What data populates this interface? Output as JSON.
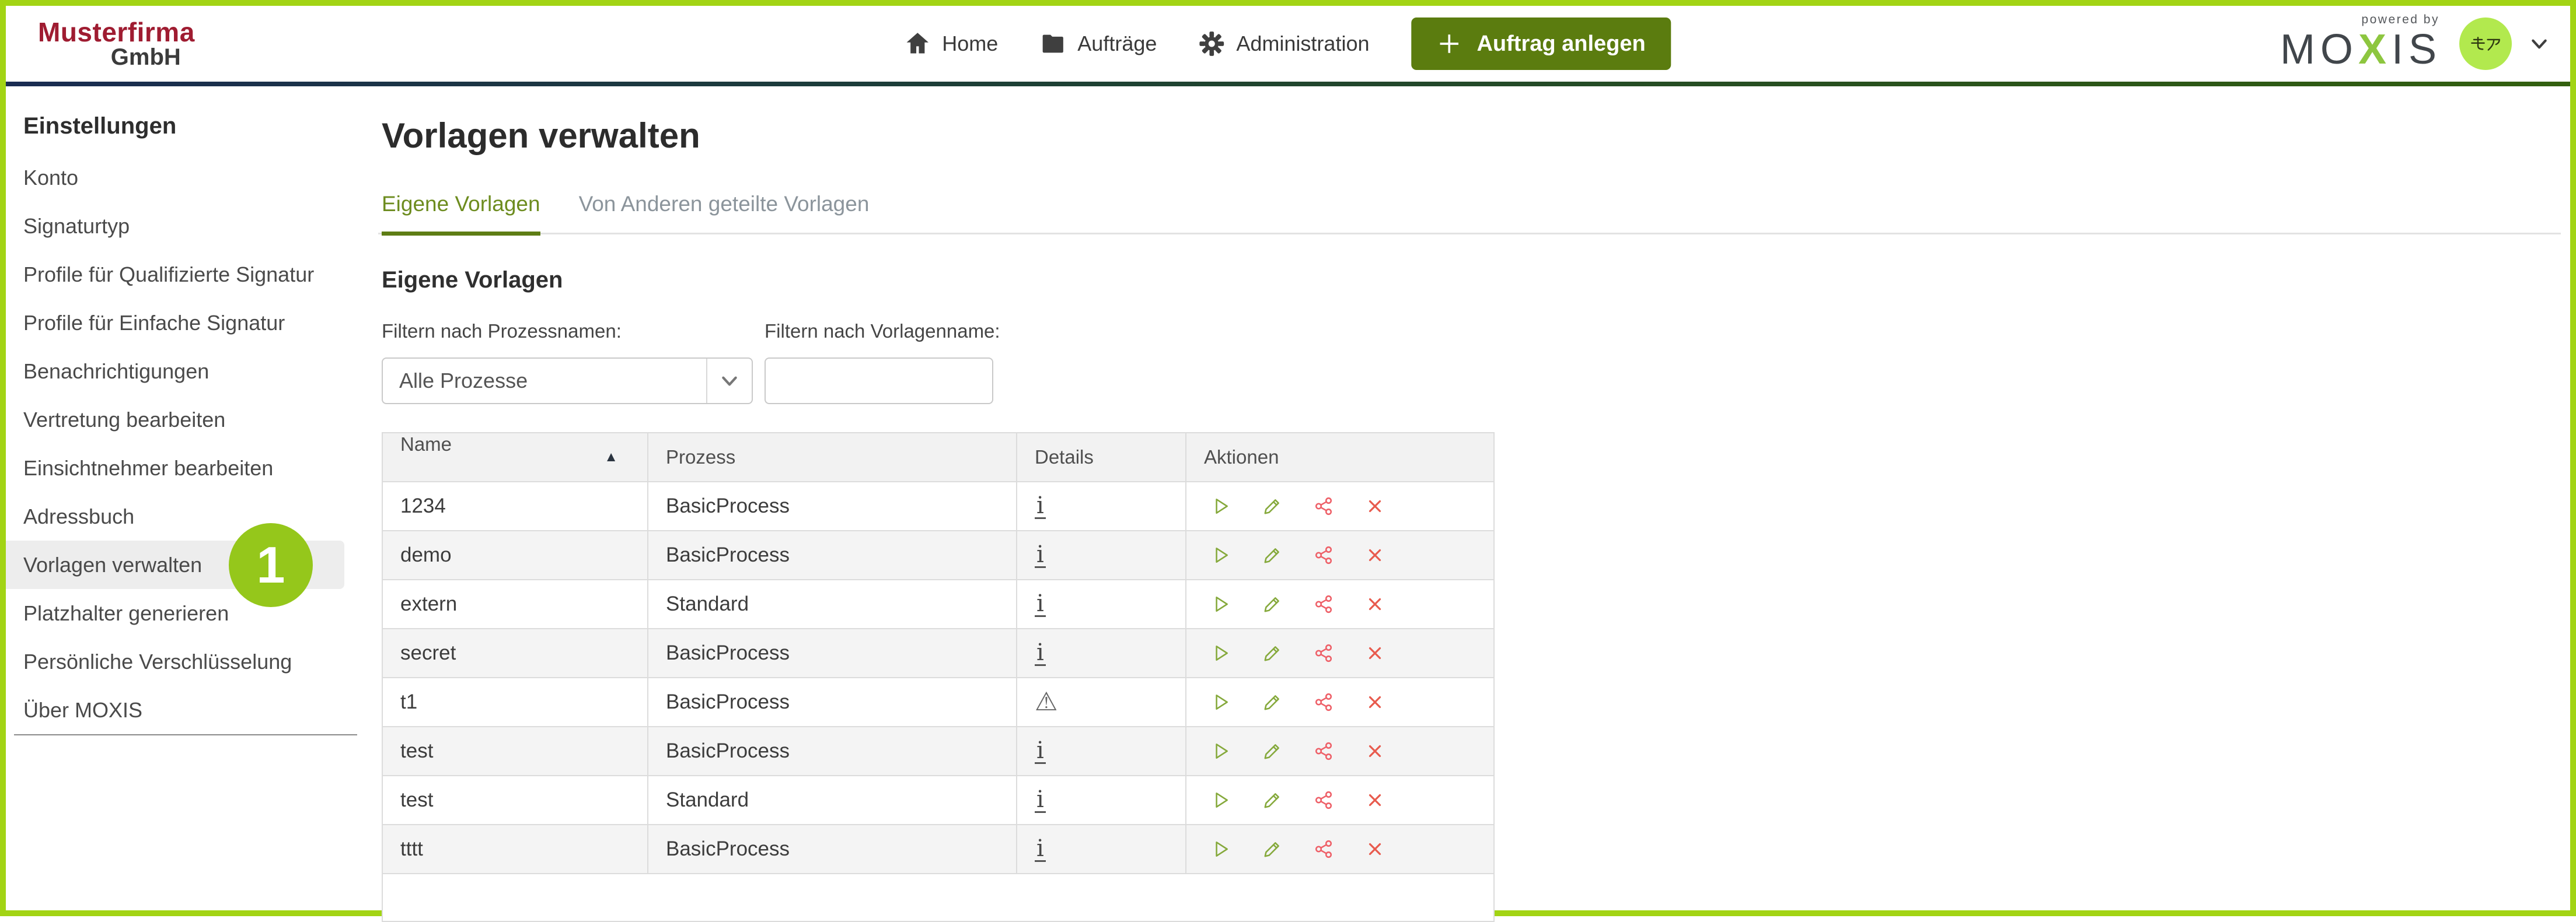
{
  "header": {
    "company_line1": "Musterfirma",
    "company_line2": "GmbH",
    "nav": [
      {
        "label": "Home"
      },
      {
        "label": "Aufträge"
      },
      {
        "label": "Administration"
      }
    ],
    "create_button_label": "Auftrag anlegen",
    "powered_by": "powered by",
    "brand_mo": "MO",
    "brand_x": "X",
    "brand_is": "IS",
    "avatar_text": "モア"
  },
  "sidebar": {
    "heading": "Einstellungen",
    "badge": "1",
    "items": [
      {
        "label": "Konto",
        "active": false
      },
      {
        "label": "Signaturtyp",
        "active": false
      },
      {
        "label": "Profile für Qualifizierte Signatur",
        "active": false
      },
      {
        "label": "Profile für Einfache Signatur",
        "active": false
      },
      {
        "label": "Benachrichtigungen",
        "active": false
      },
      {
        "label": "Vertretung bearbeiten",
        "active": false
      },
      {
        "label": "Einsichtnehmer bearbeiten",
        "active": false
      },
      {
        "label": "Adressbuch",
        "active": false
      },
      {
        "label": "Vorlagen verwalten",
        "active": true
      },
      {
        "label": "Platzhalter generieren",
        "active": false
      },
      {
        "label": "Persönliche Verschlüsselung",
        "active": false
      },
      {
        "label": "Über MOXIS",
        "active": false
      }
    ]
  },
  "main": {
    "title": "Vorlagen verwalten",
    "tabs": [
      {
        "label": "Eigene Vorlagen",
        "active": true
      },
      {
        "label": "Von Anderen geteilte Vorlagen",
        "active": false
      }
    ],
    "section_heading": "Eigene Vorlagen",
    "filters": {
      "process_label": "Filtern nach Prozessnamen:",
      "process_value": "Alle Prozesse",
      "name_label": "Filtern nach Vorlagenname:",
      "name_value": ""
    },
    "table": {
      "columns": [
        "Name",
        "Prozess",
        "Details",
        "Aktionen"
      ],
      "sort_column": "Name",
      "sort_direction": "asc",
      "rows": [
        {
          "name": "1234",
          "process": "BasicProcess",
          "details": "info"
        },
        {
          "name": "demo",
          "process": "BasicProcess",
          "details": "info"
        },
        {
          "name": "extern",
          "process": "Standard",
          "details": "info"
        },
        {
          "name": "secret",
          "process": "BasicProcess",
          "details": "info"
        },
        {
          "name": "t1",
          "process": "BasicProcess",
          "details": "warning"
        },
        {
          "name": "test",
          "process": "BasicProcess",
          "details": "info"
        },
        {
          "name": "test",
          "process": "Standard",
          "details": "info"
        },
        {
          "name": "tttt",
          "process": "BasicProcess",
          "details": "info"
        }
      ],
      "actions": [
        "run",
        "edit",
        "share",
        "delete"
      ]
    }
  },
  "colors": {
    "frame_green": "#a2d414",
    "badge_green": "#95c71b",
    "avatar_green": "#b2e94e",
    "button_olive": "#5b7c0f",
    "active_tab_olive": "#6d8c1f",
    "icon_olive": "#85a93b",
    "icon_share_red": "#ee6068",
    "icon_delete_red": "#e85a4d",
    "logo_red": "#9f1c31"
  }
}
